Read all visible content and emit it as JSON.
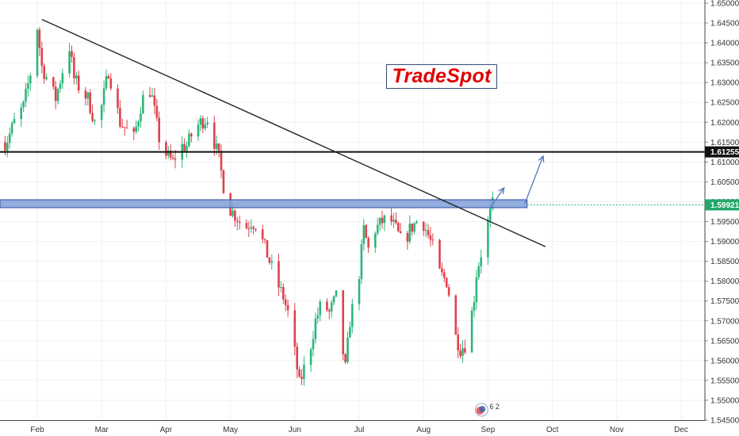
{
  "brand": {
    "logo_text": "TradeSpot"
  },
  "colors": {
    "up": "#2db67a",
    "down": "#e0414b",
    "zone_fill": "#7f9fd8",
    "zone_stroke": "#2e4f9c",
    "grid": "#eef1f5",
    "trendline": "#222222",
    "arrow": "#5c7fc0",
    "last_price": "#22a96a"
  },
  "chart_data": {
    "type": "candlestick",
    "y_axis": {
      "position": "right",
      "range": [
        1.545,
        1.65
      ],
      "ticks": [
        "1.65000",
        "1.64500",
        "1.64000",
        "1.63500",
        "1.63000",
        "1.62500",
        "1.62000",
        "1.61500",
        "1.61000",
        "1.60500",
        "1.60000",
        "1.59500",
        "1.59000",
        "1.58500",
        "1.58000",
        "1.57500",
        "1.57000",
        "1.56500",
        "1.56000",
        "1.55500",
        "1.55000",
        "1.54500"
      ]
    },
    "x_axis": {
      "ticks": [
        {
          "label": "Feb",
          "day": 0
        },
        {
          "label": "Mar",
          "day": 28
        },
        {
          "label": "Apr",
          "day": 56
        },
        {
          "label": "May",
          "day": 84
        },
        {
          "label": "Jun",
          "day": 112
        },
        {
          "label": "Jul",
          "day": 140
        },
        {
          "label": "Aug",
          "day": 168
        },
        {
          "label": "Sep",
          "day": 196
        },
        {
          "label": "Oct",
          "day": 224
        },
        {
          "label": "Nov",
          "day": 252
        },
        {
          "label": "Dec",
          "day": 280
        }
      ]
    },
    "price_labels": [
      {
        "value": 1.61255,
        "text": "1.61255",
        "style": "level"
      },
      {
        "value": 1.59921,
        "text": "1.59921",
        "style": "last"
      }
    ],
    "horizontal_line": 1.61255,
    "resistance_zone": {
      "from": 1.5985,
      "to": 1.6005
    },
    "trendline": [
      {
        "day": 2,
        "price": 1.6459
      },
      {
        "day": 221,
        "price": 1.5887
      }
    ],
    "projection_arrows": [
      {
        "from": {
          "day": 197,
          "price": 1.5985
        },
        "to": {
          "day": 203,
          "price": 1.6035
        }
      },
      {
        "from": {
          "day": 212,
          "price": 1.5995
        },
        "to": {
          "day": 220,
          "price": 1.6115
        }
      }
    ],
    "last_price_line": 1.59921,
    "event_marker": {
      "day": 196,
      "text": "6 2"
    },
    "close_path": [
      {
        "day": -17,
        "close": 1.617
      },
      {
        "day": -14,
        "close": 1.614
      },
      {
        "day": -10,
        "close": 1.62
      },
      {
        "day": -6,
        "close": 1.624
      },
      {
        "day": -2,
        "close": 1.635
      },
      {
        "day": 0,
        "close": 1.644
      },
      {
        "day": 2,
        "close": 1.634
      },
      {
        "day": 5,
        "close": 1.63
      },
      {
        "day": 8,
        "close": 1.626
      },
      {
        "day": 11,
        "close": 1.633
      },
      {
        "day": 14,
        "close": 1.639
      },
      {
        "day": 16,
        "close": 1.631
      },
      {
        "day": 19,
        "close": 1.628
      },
      {
        "day": 22,
        "close": 1.626
      },
      {
        "day": 25,
        "close": 1.62
      },
      {
        "day": 28,
        "close": 1.624
      },
      {
        "day": 31,
        "close": 1.633
      },
      {
        "day": 33,
        "close": 1.628
      },
      {
        "day": 36,
        "close": 1.62
      },
      {
        "day": 39,
        "close": 1.618
      },
      {
        "day": 42,
        "close": 1.616
      },
      {
        "day": 45,
        "close": 1.624
      },
      {
        "day": 48,
        "close": 1.63
      },
      {
        "day": 50,
        "close": 1.626
      },
      {
        "day": 53,
        "close": 1.616
      },
      {
        "day": 56,
        "close": 1.612
      },
      {
        "day": 59,
        "close": 1.61
      },
      {
        "day": 62,
        "close": 1.614
      },
      {
        "day": 65,
        "close": 1.614
      },
      {
        "day": 68,
        "close": 1.618
      },
      {
        "day": 71,
        "close": 1.62
      },
      {
        "day": 74,
        "close": 1.621
      },
      {
        "day": 77,
        "close": 1.615
      },
      {
        "day": 79,
        "close": 1.611
      },
      {
        "day": 81,
        "close": 1.604
      },
      {
        "day": 84,
        "close": 1.598
      },
      {
        "day": 87,
        "close": 1.596
      },
      {
        "day": 90,
        "close": 1.593
      },
      {
        "day": 93,
        "close": 1.595
      },
      {
        "day": 96,
        "close": 1.594
      },
      {
        "day": 98,
        "close": 1.59
      },
      {
        "day": 101,
        "close": 1.585
      },
      {
        "day": 104,
        "close": 1.58
      },
      {
        "day": 107,
        "close": 1.576
      },
      {
        "day": 110,
        "close": 1.57
      },
      {
        "day": 112,
        "close": 1.562
      },
      {
        "day": 114,
        "close": 1.554
      },
      {
        "day": 116,
        "close": 1.558
      },
      {
        "day": 119,
        "close": 1.564
      },
      {
        "day": 121,
        "close": 1.57
      },
      {
        "day": 124,
        "close": 1.575
      },
      {
        "day": 127,
        "close": 1.572
      },
      {
        "day": 130,
        "close": 1.576
      },
      {
        "day": 133,
        "close": 1.562
      },
      {
        "day": 134,
        "close": 1.558
      },
      {
        "day": 136,
        "close": 1.57
      },
      {
        "day": 138,
        "close": 1.576
      },
      {
        "day": 140,
        "close": 1.582
      },
      {
        "day": 142,
        "close": 1.593
      },
      {
        "day": 144,
        "close": 1.588
      },
      {
        "day": 147,
        "close": 1.593
      },
      {
        "day": 150,
        "close": 1.595
      },
      {
        "day": 153,
        "close": 1.596
      },
      {
        "day": 156,
        "close": 1.593
      },
      {
        "day": 159,
        "close": 1.589
      },
      {
        "day": 162,
        "close": 1.593
      },
      {
        "day": 165,
        "close": 1.595
      },
      {
        "day": 167,
        "close": 1.596
      },
      {
        "day": 169,
        "close": 1.593
      },
      {
        "day": 171,
        "close": 1.59
      },
      {
        "day": 173,
        "close": 1.587
      },
      {
        "day": 175,
        "close": 1.582
      },
      {
        "day": 178,
        "close": 1.58
      },
      {
        "day": 180,
        "close": 1.574
      },
      {
        "day": 182,
        "close": 1.566
      },
      {
        "day": 184,
        "close": 1.563
      },
      {
        "day": 186,
        "close": 1.564
      },
      {
        "day": 188,
        "close": 1.568
      },
      {
        "day": 190,
        "close": 1.576
      },
      {
        "day": 191,
        "close": 1.582
      },
      {
        "day": 193,
        "close": 1.587
      },
      {
        "day": 195,
        "close": 1.592
      },
      {
        "day": 197,
        "close": 1.597
      },
      {
        "day": 198,
        "close": 1.5992
      }
    ]
  }
}
